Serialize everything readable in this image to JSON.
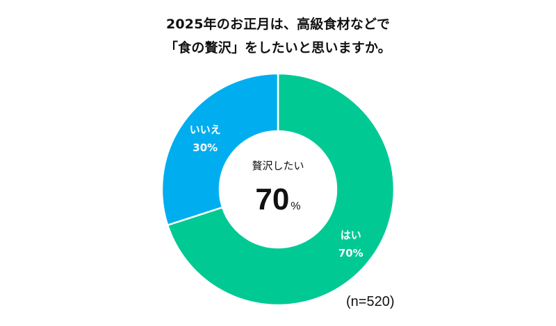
{
  "title_line1": "2025年のお正月は、高級食材などで",
  "title_line2": "「食の贅沢」をしたいと思いますか。",
  "center_label": "贅沢したい",
  "center_value": "70",
  "center_unit": "%",
  "note": "(n=520)",
  "colors": {
    "yes": "#00C994",
    "no": "#00AEEF",
    "separator": "#ffffff",
    "slice_label_text": "#ffffff",
    "text": "#111111"
  },
  "chart_data": {
    "type": "pie",
    "donut": true,
    "categories": [
      "はい",
      "いいえ"
    ],
    "values": [
      70,
      30
    ],
    "value_labels": [
      "70%",
      "30%"
    ],
    "start": "top",
    "direction": "clockwise"
  }
}
